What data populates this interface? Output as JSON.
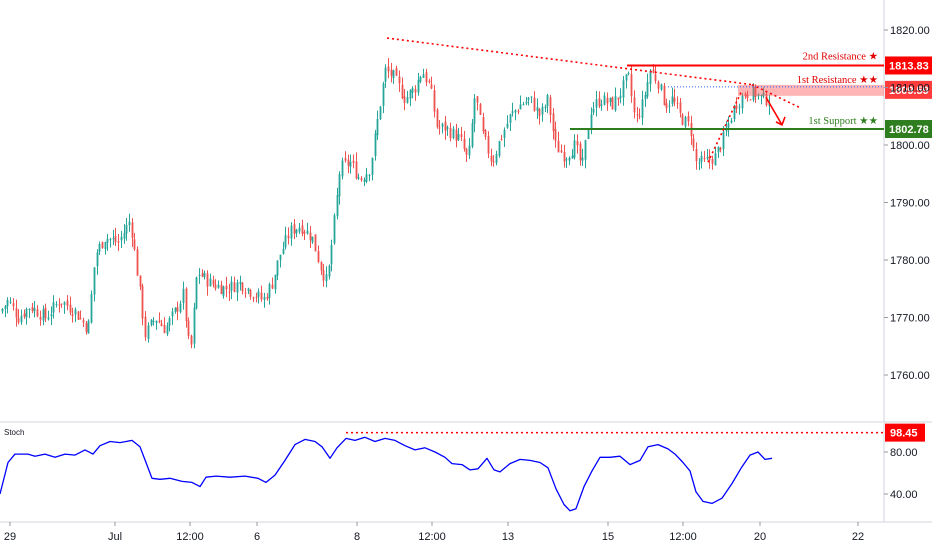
{
  "chart_data": [
    {
      "type": "candlestick",
      "x_tick_labels": [
        "29",
        "Jul",
        "12:00",
        "6",
        "8",
        "12:00",
        "13",
        "15",
        "12:00",
        "20",
        "22"
      ],
      "y_tick_labels": [
        "1820.00",
        "1810.00",
        "1800.00",
        "1790.00",
        "1780.00",
        "1770.00",
        "1760.00"
      ],
      "ylim": [
        1754,
        1823
      ],
      "levels": [
        {
          "name": "2nd Resistance",
          "label": "2nd Resistance ★",
          "value": 1813.83,
          "value_label": "1813.83",
          "color": "#ff0000",
          "style": "solid"
        },
        {
          "name": "1st Resistance",
          "label": "1st Resistance ★★",
          "value": 1809.59,
          "value_label": "1809.59",
          "color": "#ff3b3b",
          "style": "zone"
        },
        {
          "name": "1st Support",
          "label": "1st Support ★★",
          "value": 1802.78,
          "value_label": "1802.78",
          "color": "#2e7d1f",
          "style": "solid"
        }
      ],
      "series": [
        {
          "name": "",
          "kind": "ohlc-candles",
          "up_color": "#26a69a",
          "down_color": "#ef5350",
          "close_path": [
            [
              0,
              1771
            ],
            [
              8,
              1773
            ],
            [
              18,
              1770
            ],
            [
              30,
              1772
            ],
            [
              45,
              1770
            ],
            [
              60,
              1773
            ],
            [
              75,
              1771
            ],
            [
              88,
              1768
            ],
            [
              95,
              1781
            ],
            [
              105,
              1784
            ],
            [
              118,
              1783
            ],
            [
              130,
              1787
            ],
            [
              137,
              1778
            ],
            [
              145,
              1767
            ],
            [
              155,
              1770
            ],
            [
              165,
              1768
            ],
            [
              175,
              1771
            ],
            [
              183,
              1774
            ],
            [
              190,
              1763
            ],
            [
              197,
              1778
            ],
            [
              210,
              1776
            ],
            [
              225,
              1775
            ],
            [
              240,
              1776
            ],
            [
              255,
              1774
            ],
            [
              263,
              1773
            ],
            [
              272,
              1776
            ],
            [
              280,
              1781
            ],
            [
              290,
              1785
            ],
            [
              300,
              1786
            ],
            [
              312,
              1784
            ],
            [
              320,
              1779
            ],
            [
              327,
              1776
            ],
            [
              335,
              1788
            ],
            [
              340,
              1796
            ],
            [
              350,
              1797
            ],
            [
              360,
              1794
            ],
            [
              370,
              1796
            ],
            [
              378,
              1805
            ],
            [
              385,
              1813
            ],
            [
              393,
              1812
            ],
            [
              405,
              1808
            ],
            [
              415,
              1810
            ],
            [
              422,
              1813
            ],
            [
              430,
              1810
            ],
            [
              437,
              1803
            ],
            [
              445,
              1803
            ],
            [
              460,
              1801
            ],
            [
              468,
              1797
            ],
            [
              475,
              1809
            ],
            [
              482,
              1802
            ],
            [
              492,
              1797
            ],
            [
              500,
              1801
            ],
            [
              510,
              1805
            ],
            [
              520,
              1807
            ],
            [
              530,
              1808
            ],
            [
              540,
              1805
            ],
            [
              548,
              1808
            ],
            [
              555,
              1800
            ],
            [
              565,
              1798
            ],
            [
              575,
              1800
            ],
            [
              582,
              1796
            ],
            [
              590,
              1806
            ],
            [
              600,
              1808
            ],
            [
              612,
              1807
            ],
            [
              620,
              1809
            ],
            [
              628,
              1812
            ],
            [
              635,
              1804
            ],
            [
              642,
              1807
            ],
            [
              650,
              1813
            ],
            [
              658,
              1811
            ],
            [
              665,
              1807
            ],
            [
              672,
              1808
            ],
            [
              680,
              1805
            ],
            [
              690,
              1803
            ],
            [
              695,
              1797
            ],
            [
              705,
              1797
            ],
            [
              715,
              1798
            ],
            [
              725,
              1802
            ],
            [
              735,
              1807
            ],
            [
              745,
              1809
            ],
            [
              755,
              1809
            ],
            [
              762,
              1808
            ],
            [
              770,
              1808
            ]
          ]
        }
      ],
      "annotations": [
        {
          "type": "dotted-trendline",
          "from": {
            "x_px_hint": "Jul 8 peak"
          },
          "to": "1st Resistance zone",
          "color": "#ff0000"
        },
        {
          "type": "arrow",
          "direction": "down",
          "target": "1st Support",
          "color": "#ff0000"
        }
      ]
    },
    {
      "type": "line",
      "title": "Stoch",
      "y_tick_labels": [
        "80.00",
        "40.00"
      ],
      "ylim": [
        20,
        105
      ],
      "levels": [
        {
          "value": 98.45,
          "value_label": "98.45",
          "color": "#ff0000",
          "style": "dotted"
        }
      ],
      "series": [
        {
          "name": "",
          "color": "#0000ff",
          "points": [
            [
              0,
              40
            ],
            [
              8,
              70
            ],
            [
              15,
              78
            ],
            [
              28,
              78
            ],
            [
              35,
              76
            ],
            [
              45,
              78
            ],
            [
              55,
              75
            ],
            [
              65,
              78
            ],
            [
              75,
              77
            ],
            [
              85,
              82
            ],
            [
              93,
              78
            ],
            [
              100,
              86
            ],
            [
              110,
              90
            ],
            [
              120,
              89
            ],
            [
              132,
              91
            ],
            [
              140,
              85
            ],
            [
              146,
              70
            ],
            [
              152,
              55
            ],
            [
              160,
              54
            ],
            [
              170,
              55
            ],
            [
              182,
              52
            ],
            [
              192,
              51
            ],
            [
              200,
              47
            ],
            [
              206,
              56
            ],
            [
              216,
              57
            ],
            [
              230,
              56
            ],
            [
              245,
              57
            ],
            [
              258,
              55
            ],
            [
              266,
              51
            ],
            [
              275,
              58
            ],
            [
              285,
              72
            ],
            [
              295,
              87
            ],
            [
              305,
              92
            ],
            [
              315,
              90
            ],
            [
              322,
              85
            ],
            [
              330,
              74
            ],
            [
              337,
              84
            ],
            [
              346,
              93
            ],
            [
              355,
              91
            ],
            [
              365,
              94
            ],
            [
              375,
              90
            ],
            [
              385,
              93
            ],
            [
              395,
              91
            ],
            [
              405,
              86
            ],
            [
              415,
              82
            ],
            [
              425,
              84
            ],
            [
              435,
              80
            ],
            [
              445,
              75
            ],
            [
              452,
              69
            ],
            [
              462,
              68
            ],
            [
              470,
              63
            ],
            [
              478,
              64
            ],
            [
              487,
              74
            ],
            [
              494,
              63
            ],
            [
              500,
              61
            ],
            [
              510,
              69
            ],
            [
              520,
              73
            ],
            [
              530,
              72
            ],
            [
              540,
              70
            ],
            [
              548,
              65
            ],
            [
              556,
              45
            ],
            [
              564,
              30
            ],
            [
              570,
              24
            ],
            [
              576,
              26
            ],
            [
              584,
              47
            ],
            [
              592,
              62
            ],
            [
              600,
              75
            ],
            [
              610,
              75
            ],
            [
              620,
              76
            ],
            [
              630,
              68
            ],
            [
              640,
              72
            ],
            [
              648,
              85
            ],
            [
              658,
              87
            ],
            [
              668,
              83
            ],
            [
              675,
              78
            ],
            [
              683,
              70
            ],
            [
              690,
              62
            ],
            [
              696,
              42
            ],
            [
              703,
              33
            ],
            [
              712,
              31
            ],
            [
              722,
              36
            ],
            [
              732,
              50
            ],
            [
              742,
              66
            ],
            [
              750,
              77
            ],
            [
              758,
              80
            ],
            [
              765,
              73
            ],
            [
              772,
              74
            ]
          ]
        }
      ]
    }
  ]
}
